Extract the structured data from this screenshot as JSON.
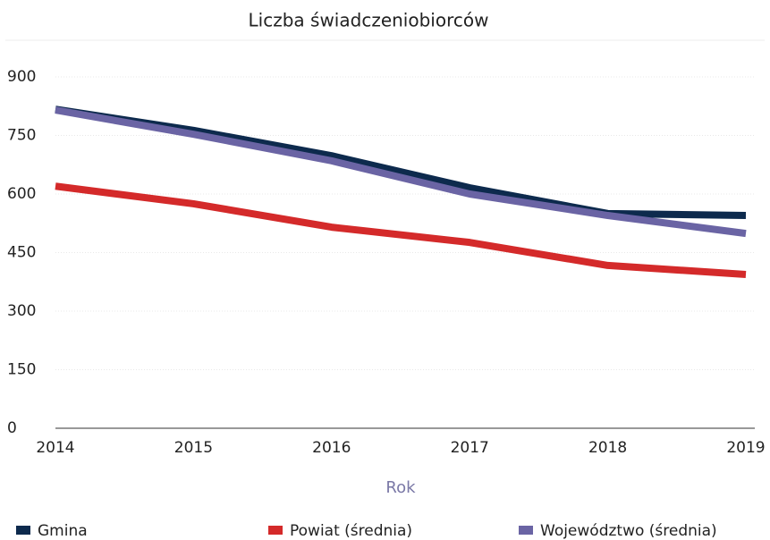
{
  "chart_data": {
    "type": "line",
    "title": "Liczba świadczeniobiorców",
    "x_label": "Rok",
    "x": [
      2014,
      2015,
      2016,
      2017,
      2018,
      2019
    ],
    "series": [
      {
        "name": "Gmina",
        "color": "#0d2a4d",
        "values": [
          817,
          763,
          698,
          616,
          550,
          545
        ]
      },
      {
        "name": "Powiat (średnia)",
        "color": "#d42a2a",
        "values": [
          620,
          575,
          515,
          476,
          417,
          394
        ]
      },
      {
        "name": "Województwo (średnia)",
        "color": "#6a64a4",
        "values": [
          815,
          753,
          685,
          600,
          545,
          499
        ]
      }
    ],
    "xlim": [
      2014,
      2019
    ],
    "xticks": [
      2014,
      2015,
      2016,
      2017,
      2018,
      2019
    ],
    "ylim": [
      0,
      900
    ],
    "yticks": [
      0,
      150,
      300,
      450,
      600,
      750,
      900
    ],
    "grid": true
  }
}
